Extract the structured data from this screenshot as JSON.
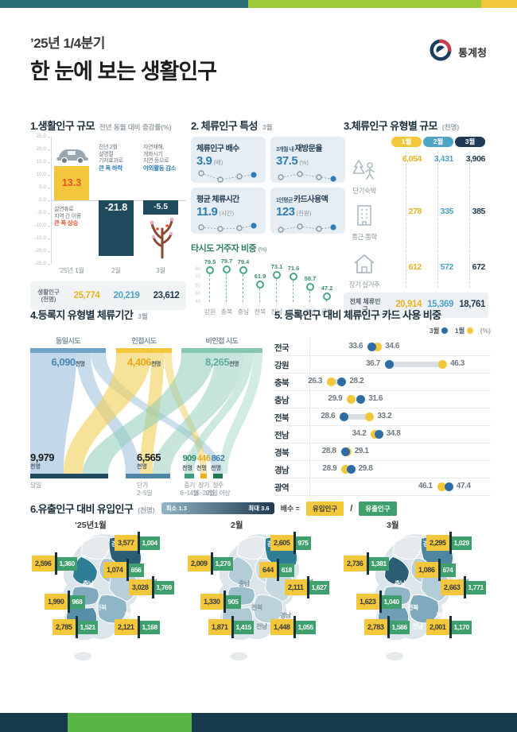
{
  "header": {
    "quarter": "’25년 1/4분기",
    "title": "한 눈에 보는 생활인구",
    "agency": "통계청"
  },
  "colors": {
    "accent_yellow": "#F2C73B",
    "accent_navy": "#1F4A5E",
    "accent_blue": "#4FA3C4",
    "accent_teal": "#83C6B2",
    "accent_green": "#3FA06E",
    "highlight_red": "#E8502E",
    "highlight_blue": "#2E7DB3"
  },
  "chart_data": [
    {
      "id": "population_change",
      "type": "bar",
      "title": "1.생활인구 규모",
      "subtitle": "전년 동월 대비 증감률(%)",
      "categories": [
        "’25년 1월",
        "2월",
        "3월"
      ],
      "values": [
        13.3,
        -21.8,
        -5.5
      ],
      "bar_colors": [
        "#F2C73B",
        "#1F4A5E",
        "#1F4A5E"
      ],
      "value_colors": [
        "#E8502E",
        "#FFFFFF",
        "#FFFFFF"
      ],
      "ylim": [
        -25,
        25
      ],
      "ytick_step": 5,
      "annotations": [
        {
          "lines": [
            "설연휴로",
            "지역 간 이동"
          ],
          "highlight": "큰 폭 상승",
          "highlight_color": "#E8502E"
        },
        {
          "lines": [
            "전년 2월",
            "설명절",
            "기저효과로"
          ],
          "highlight": "큰 폭 하락",
          "highlight_color": "#2E7DB3"
        },
        {
          "lines": [
            "자연재해,",
            "개화시기",
            "지연 등으로"
          ],
          "highlight": "야외활동 감소",
          "highlight_color": "#2E7DB3"
        }
      ],
      "footer": {
        "label": "생활인구",
        "unit": "(천명)",
        "values": [
          "25,774",
          "20,219",
          "23,612"
        ],
        "value_colors": [
          "#E8B320",
          "#4FA3C4",
          "#1F3A52"
        ]
      }
    },
    {
      "id": "stay_features",
      "type": "cards",
      "title": "2. 체류인구 특성",
      "month": "3월",
      "cards": [
        {
          "prefix": "",
          "name": "체류인구 배수",
          "value": "3.9",
          "unit": "(배)"
        },
        {
          "prefix": "3개월 내",
          "name": "재방문율",
          "value": "37.5",
          "unit": "(%)"
        },
        {
          "prefix": "",
          "name": "평균 체류시간",
          "value": "11.9",
          "unit": "(시간)"
        },
        {
          "prefix": "1인평균",
          "name": "카드사용액",
          "value": "123",
          "unit": "(천원)"
        }
      ]
    },
    {
      "id": "other_sido_share",
      "type": "lollipop",
      "title": "타시도 거주자 비중",
      "unit": "(%)",
      "categories": [
        "강원",
        "충북",
        "충남",
        "전북",
        "전남",
        "경북",
        "경남",
        "광역"
      ],
      "values": [
        79.5,
        79.7,
        79.4,
        61.9,
        73.1,
        71.6,
        58.7,
        47.2
      ],
      "yticks": [
        80,
        70,
        60,
        50,
        40
      ],
      "ylim": [
        40,
        85
      ]
    },
    {
      "id": "stay_type_scale",
      "type": "table",
      "title": "3.체류인구 유형별 규모",
      "unit": "(천명)",
      "columns": [
        "1월",
        "2월",
        "3월"
      ],
      "column_colors": [
        "#F2C73B",
        "#4FA3C4",
        "#1F3A52"
      ],
      "value_colors": [
        "#E8B320",
        "#4FA3C4",
        "#1F3A52"
      ],
      "rows": [
        {
          "label": "단기숙박",
          "icon": "camping-icon",
          "values": [
            "6,054",
            "3,431",
            "3,906"
          ]
        },
        {
          "label": "통근·통학",
          "icon": "building-icon",
          "values": [
            "278",
            "335",
            "385"
          ]
        },
        {
          "label": "장기 실거주",
          "icon": "house-icon",
          "values": [
            "612",
            "572",
            "672"
          ]
        }
      ],
      "total": {
        "label": "전체 체류인구",
        "values": [
          "20,914",
          "15,369",
          "18,761"
        ]
      }
    },
    {
      "id": "stay_duration_sankey",
      "type": "sankey",
      "title": "4.등록지 유형별 체류기간",
      "month": "3월",
      "sources": [
        {
          "label": "동일시도",
          "value": "6,090",
          "unit": "천명",
          "color": "#6FA3C8",
          "value_color": "#4A86B4"
        },
        {
          "label": "인접시도",
          "value": "4,406",
          "unit": "천명",
          "color": "#F2C73B",
          "value_color": "#E8A81C"
        },
        {
          "label": "비인접 시도",
          "value": "8,265",
          "unit": "천명",
          "color": "#83C6B2",
          "value_color": "#5FAE97"
        }
      ],
      "targets": [
        {
          "label": "당일",
          "sub": "",
          "value": "9,979",
          "unit": "천명",
          "color": "#1F4A5E",
          "value_color": "#1b1b1b"
        },
        {
          "label": "단기",
          "sub": "2~5일",
          "value": "6,565",
          "unit": "천명",
          "color": "#4F86A8",
          "value_color": "#1b1b1b"
        },
        {
          "label": "중기",
          "sub": "6~14일",
          "value": "909",
          "unit": "천명",
          "color": "#3E9C82",
          "value_color": "#2F8C6E"
        },
        {
          "label": "장기",
          "sub": "15~20일",
          "value": "446",
          "unit": "천명",
          "color": "#E8B320",
          "value_color": "#E8A81C"
        },
        {
          "label": "정주",
          "sub": "21일 이상",
          "value": "862",
          "unit": "천명",
          "color": "#1E7A4F",
          "value_color": "#3D7FB0"
        }
      ]
    },
    {
      "id": "card_usage_ratio",
      "type": "dumbbell",
      "title": "5. 등록인구 대비 체류인구 카드 사용 비중",
      "unit": "(%)",
      "legend": [
        {
          "label": "3월",
          "color": "#2E6DA4"
        },
        {
          "label": "1월",
          "color": "#F2C73B"
        }
      ],
      "xlim": [
        24,
        50
      ],
      "rows": [
        {
          "label": "전국",
          "march": 33.6,
          "january": 34.6,
          "left": "march"
        },
        {
          "label": "강원",
          "march": 36.7,
          "january": 46.3,
          "left": "march"
        },
        {
          "label": "충북",
          "march": 28.2,
          "january": 26.3,
          "left": "january"
        },
        {
          "label": "충남",
          "march": 31.6,
          "january": 29.9,
          "left": "january"
        },
        {
          "label": "전북",
          "march": 28.6,
          "january": 33.2,
          "left": "march"
        },
        {
          "label": "전남",
          "march": 34.8,
          "january": 34.2,
          "left": "january"
        },
        {
          "label": "경북",
          "march": 28.8,
          "january": 29.1,
          "left": "march"
        },
        {
          "label": "경남",
          "march": 29.8,
          "january": 28.9,
          "left": "january"
        },
        {
          "label": "광역",
          "march": 47.4,
          "january": 46.1,
          "left": "january"
        }
      ]
    },
    {
      "id": "inflow_outflow_maps",
      "type": "maps",
      "title": "6.유출인구 대비 유입인구",
      "unit": "(천명)",
      "legend": {
        "min_label": "최소 1.3",
        "max_label": "최대 3.6",
        "formula_label": "배수 =",
        "inflow_label": "유입인구",
        "outflow_label": "유출인구",
        "divider": "/"
      },
      "maps": [
        {
          "month": "’25년1월",
          "regions": [
            {
              "name": "강원",
              "inflow": "3,577",
              "outflow": "1,004"
            },
            {
              "name": "충북",
              "inflow": "1,074",
              "outflow": "656"
            },
            {
              "name": "충남",
              "inflow": "2,596",
              "outflow": "1,360"
            },
            {
              "name": "경북",
              "inflow": "3,028",
              "outflow": "1,769"
            },
            {
              "name": "전북",
              "inflow": "1,990",
              "outflow": "968"
            },
            {
              "name": "전남",
              "inflow": "2,785",
              "outflow": "1,521"
            },
            {
              "name": "경남",
              "inflow": "2,121",
              "outflow": "1,168"
            }
          ]
        },
        {
          "month": "2월",
          "regions": [
            {
              "name": "강원",
              "inflow": "2,605",
              "outflow": "975"
            },
            {
              "name": "충북",
              "inflow": "644",
              "outflow": "618"
            },
            {
              "name": "충남",
              "inflow": "2,009",
              "outflow": "1,276"
            },
            {
              "name": "경북",
              "inflow": "2,111",
              "outflow": "1,627"
            },
            {
              "name": "전북",
              "inflow": "1,330",
              "outflow": "905"
            },
            {
              "name": "전남",
              "inflow": "1,871",
              "outflow": "1,415"
            },
            {
              "name": "경남",
              "inflow": "1,448",
              "outflow": "1,055"
            }
          ]
        },
        {
          "month": "3월",
          "regions": [
            {
              "name": "강원",
              "inflow": "2,295",
              "outflow": "1,029"
            },
            {
              "name": "충북",
              "inflow": "1,086",
              "outflow": "674"
            },
            {
              "name": "충남",
              "inflow": "2,736",
              "outflow": "1,381"
            },
            {
              "name": "경북",
              "inflow": "2,663",
              "outflow": "1,771"
            },
            {
              "name": "전북",
              "inflow": "1,623",
              "outflow": "1,040"
            },
            {
              "name": "전남",
              "inflow": "2,783",
              "outflow": "1,586"
            },
            {
              "name": "경남",
              "inflow": "2,001",
              "outflow": "1,170"
            }
          ]
        }
      ]
    }
  ]
}
